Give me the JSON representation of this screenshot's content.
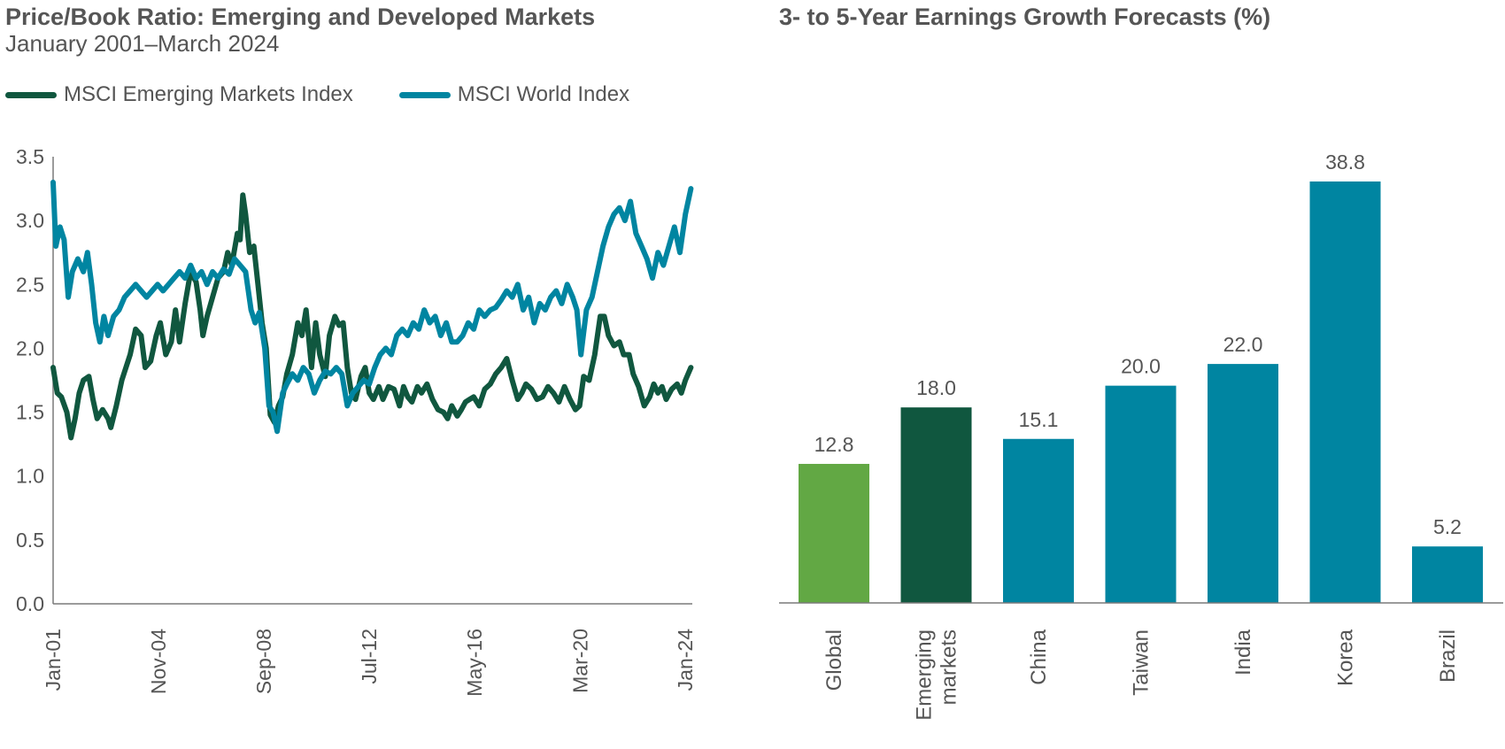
{
  "chart_data": [
    {
      "type": "line",
      "title": "Price/Book Ratio: Emerging and Developed Markets",
      "subtitle": "January 2001–March 2024",
      "xlabel": "",
      "ylabel": "",
      "ylim": [
        0,
        3.5
      ],
      "yticks": [
        "0.0",
        "0.5",
        "1.0",
        "1.5",
        "2.0",
        "2.5",
        "3.0",
        "3.5"
      ],
      "xlim": [
        2001.0,
        2024.25
      ],
      "xticks": [
        {
          "label": "Jan-01",
          "x": 2001.0
        },
        {
          "label": "Nov-04",
          "x": 2004.83
        },
        {
          "label": "Sep-08",
          "x": 2008.67
        },
        {
          "label": "Jul-12",
          "x": 2012.5
        },
        {
          "label": "May-16",
          "x": 2016.33
        },
        {
          "label": "Mar-20",
          "x": 2020.17
        },
        {
          "label": "Jan-24",
          "x": 2024.0
        }
      ],
      "series": [
        {
          "name": "MSCI Emerging Markets Index",
          "color": "#10573f",
          "x": [
            2001.0,
            2001.15,
            2001.3,
            2001.5,
            2001.65,
            2001.8,
            2001.95,
            2002.1,
            2002.3,
            2002.45,
            2002.6,
            2002.8,
            2003.0,
            2003.1,
            2003.3,
            2003.5,
            2003.8,
            2004.0,
            2004.2,
            2004.35,
            2004.55,
            2004.75,
            2004.9,
            2005.1,
            2005.3,
            2005.45,
            2005.6,
            2005.8,
            2006.0,
            2006.2,
            2006.35,
            2006.45,
            2006.6,
            2006.8,
            2007.0,
            2007.2,
            2007.35,
            2007.5,
            2007.7,
            2007.8,
            2007.9,
            2008.0,
            2008.15,
            2008.3,
            2008.45,
            2008.6,
            2008.75,
            2008.9,
            2009.05,
            2009.2,
            2009.35,
            2009.5,
            2009.7,
            2009.9,
            2010.05,
            2010.2,
            2010.4,
            2010.55,
            2010.7,
            2010.9,
            2011.05,
            2011.25,
            2011.4,
            2011.55,
            2011.7,
            2011.85,
            2012.0,
            2012.2,
            2012.35,
            2012.5,
            2012.65,
            2012.85,
            2013.0,
            2013.2,
            2013.4,
            2013.6,
            2013.75,
            2013.9,
            2014.05,
            2014.25,
            2014.4,
            2014.6,
            2014.8,
            2015.0,
            2015.2,
            2015.35,
            2015.5,
            2015.7,
            2015.85,
            2016.0,
            2016.15,
            2016.3,
            2016.5,
            2016.7,
            2016.9,
            2017.1,
            2017.3,
            2017.5,
            2017.7,
            2017.9,
            2018.05,
            2018.2,
            2018.4,
            2018.6,
            2018.8,
            2019.0,
            2019.2,
            2019.4,
            2019.6,
            2019.8,
            2020.0,
            2020.15,
            2020.3,
            2020.5,
            2020.7,
            2020.9,
            2021.05,
            2021.2,
            2021.4,
            2021.6,
            2021.75,
            2021.95,
            2022.1,
            2022.3,
            2022.5,
            2022.7,
            2022.85,
            2023.0,
            2023.15,
            2023.3,
            2023.5,
            2023.7,
            2023.85,
            2024.0,
            2024.2
          ],
          "values": [
            1.85,
            1.65,
            1.62,
            1.5,
            1.3,
            1.45,
            1.65,
            1.75,
            1.78,
            1.6,
            1.45,
            1.52,
            1.45,
            1.38,
            1.55,
            1.75,
            1.95,
            2.15,
            2.1,
            1.85,
            1.9,
            2.1,
            2.2,
            1.95,
            2.05,
            2.3,
            2.05,
            2.35,
            2.6,
            2.52,
            2.3,
            2.1,
            2.25,
            2.4,
            2.55,
            2.6,
            2.75,
            2.65,
            2.9,
            2.85,
            3.2,
            3.05,
            2.75,
            2.8,
            2.5,
            2.2,
            2.0,
            1.48,
            1.42,
            1.55,
            1.62,
            1.8,
            1.95,
            2.2,
            2.1,
            2.3,
            1.85,
            2.2,
            1.95,
            1.78,
            2.1,
            2.25,
            2.18,
            2.2,
            1.85,
            1.65,
            1.6,
            1.78,
            1.85,
            1.65,
            1.6,
            1.7,
            1.6,
            1.7,
            1.68,
            1.55,
            1.7,
            1.62,
            1.58,
            1.7,
            1.65,
            1.72,
            1.6,
            1.52,
            1.5,
            1.45,
            1.55,
            1.47,
            1.52,
            1.58,
            1.6,
            1.62,
            1.55,
            1.68,
            1.72,
            1.8,
            1.85,
            1.92,
            1.75,
            1.6,
            1.65,
            1.72,
            1.68,
            1.6,
            1.62,
            1.7,
            1.65,
            1.58,
            1.7,
            1.6,
            1.52,
            1.55,
            1.78,
            1.75,
            1.95,
            2.25,
            2.25,
            2.1,
            2.02,
            2.05,
            1.95,
            1.95,
            1.8,
            1.7,
            1.55,
            1.62,
            1.72,
            1.65,
            1.7,
            1.6,
            1.68,
            1.72,
            1.65,
            1.75,
            1.85
          ]
        },
        {
          "name": "MSCI World Index",
          "color": "#0085a1",
          "x": [
            2001.0,
            2001.1,
            2001.25,
            2001.4,
            2001.55,
            2001.7,
            2001.9,
            2002.1,
            2002.25,
            2002.4,
            2002.55,
            2002.7,
            2002.85,
            2003.0,
            2003.2,
            2003.4,
            2003.6,
            2003.8,
            2004.0,
            2004.2,
            2004.4,
            2004.6,
            2004.8,
            2005.0,
            2005.2,
            2005.4,
            2005.6,
            2005.8,
            2006.0,
            2006.2,
            2006.4,
            2006.6,
            2006.8,
            2007.0,
            2007.2,
            2007.4,
            2007.6,
            2007.8,
            2008.0,
            2008.2,
            2008.35,
            2008.5,
            2008.7,
            2008.85,
            2009.0,
            2009.15,
            2009.35,
            2009.5,
            2009.7,
            2009.9,
            2010.1,
            2010.3,
            2010.5,
            2010.7,
            2010.9,
            2011.1,
            2011.3,
            2011.5,
            2011.7,
            2011.9,
            2012.1,
            2012.3,
            2012.5,
            2012.7,
            2012.9,
            2013.1,
            2013.3,
            2013.5,
            2013.7,
            2013.9,
            2014.1,
            2014.3,
            2014.5,
            2014.7,
            2014.9,
            2015.1,
            2015.3,
            2015.5,
            2015.7,
            2015.9,
            2016.1,
            2016.3,
            2016.5,
            2016.7,
            2016.9,
            2017.1,
            2017.3,
            2017.5,
            2017.7,
            2017.9,
            2018.1,
            2018.3,
            2018.5,
            2018.7,
            2018.9,
            2019.1,
            2019.3,
            2019.5,
            2019.7,
            2019.9,
            2020.05,
            2020.2,
            2020.4,
            2020.6,
            2020.8,
            2021.0,
            2021.2,
            2021.4,
            2021.6,
            2021.8,
            2022.0,
            2022.2,
            2022.4,
            2022.6,
            2022.8,
            2023.0,
            2023.2,
            2023.4,
            2023.6,
            2023.8,
            2024.0,
            2024.2
          ],
          "values": [
            3.3,
            2.8,
            2.95,
            2.85,
            2.4,
            2.6,
            2.7,
            2.6,
            2.75,
            2.5,
            2.2,
            2.05,
            2.25,
            2.1,
            2.25,
            2.3,
            2.4,
            2.45,
            2.5,
            2.45,
            2.4,
            2.45,
            2.5,
            2.45,
            2.5,
            2.55,
            2.6,
            2.55,
            2.65,
            2.55,
            2.6,
            2.5,
            2.6,
            2.55,
            2.62,
            2.58,
            2.7,
            2.65,
            2.6,
            2.3,
            2.2,
            2.28,
            2.0,
            1.55,
            1.5,
            1.35,
            1.65,
            1.72,
            1.8,
            1.75,
            1.85,
            1.8,
            1.65,
            1.75,
            1.82,
            1.8,
            1.85,
            1.8,
            1.55,
            1.65,
            1.7,
            1.75,
            1.72,
            1.85,
            1.95,
            2.0,
            1.95,
            2.1,
            2.15,
            2.1,
            2.2,
            2.15,
            2.3,
            2.2,
            2.25,
            2.1,
            2.2,
            2.05,
            2.05,
            2.1,
            2.2,
            2.15,
            2.3,
            2.25,
            2.3,
            2.32,
            2.38,
            2.45,
            2.4,
            2.5,
            2.3,
            2.4,
            2.2,
            2.35,
            2.3,
            2.4,
            2.45,
            2.35,
            2.5,
            2.4,
            2.3,
            1.95,
            2.3,
            2.4,
            2.6,
            2.8,
            2.95,
            3.05,
            3.1,
            3.0,
            3.15,
            2.9,
            2.8,
            2.7,
            2.55,
            2.75,
            2.65,
            2.8,
            2.95,
            2.75,
            3.05,
            3.25
          ]
        }
      ]
    },
    {
      "type": "bar",
      "title": "3- to 5-Year Earnings Growth Forecasts (%)",
      "xlabel": "",
      "ylabel": "",
      "ylim": [
        0,
        40
      ],
      "categories": [
        "Global",
        "Emerging markets",
        "China",
        "Taiwan",
        "India",
        "Korea",
        "Brazil"
      ],
      "category_lines": [
        [
          "Global"
        ],
        [
          "Emerging",
          "markets"
        ],
        [
          "China"
        ],
        [
          "Taiwan"
        ],
        [
          "India"
        ],
        [
          "Korea"
        ],
        [
          "Brazil"
        ]
      ],
      "values": [
        12.8,
        18.0,
        15.1,
        20.0,
        22.0,
        38.8,
        5.2
      ],
      "labels": [
        "12.8",
        "18.0",
        "15.1",
        "20.0",
        "22.0",
        "38.8",
        "5.2"
      ],
      "colors": [
        "#62a844",
        "#10573f",
        "#0085a1",
        "#0085a1",
        "#0085a1",
        "#0085a1",
        "#0085a1"
      ]
    }
  ]
}
